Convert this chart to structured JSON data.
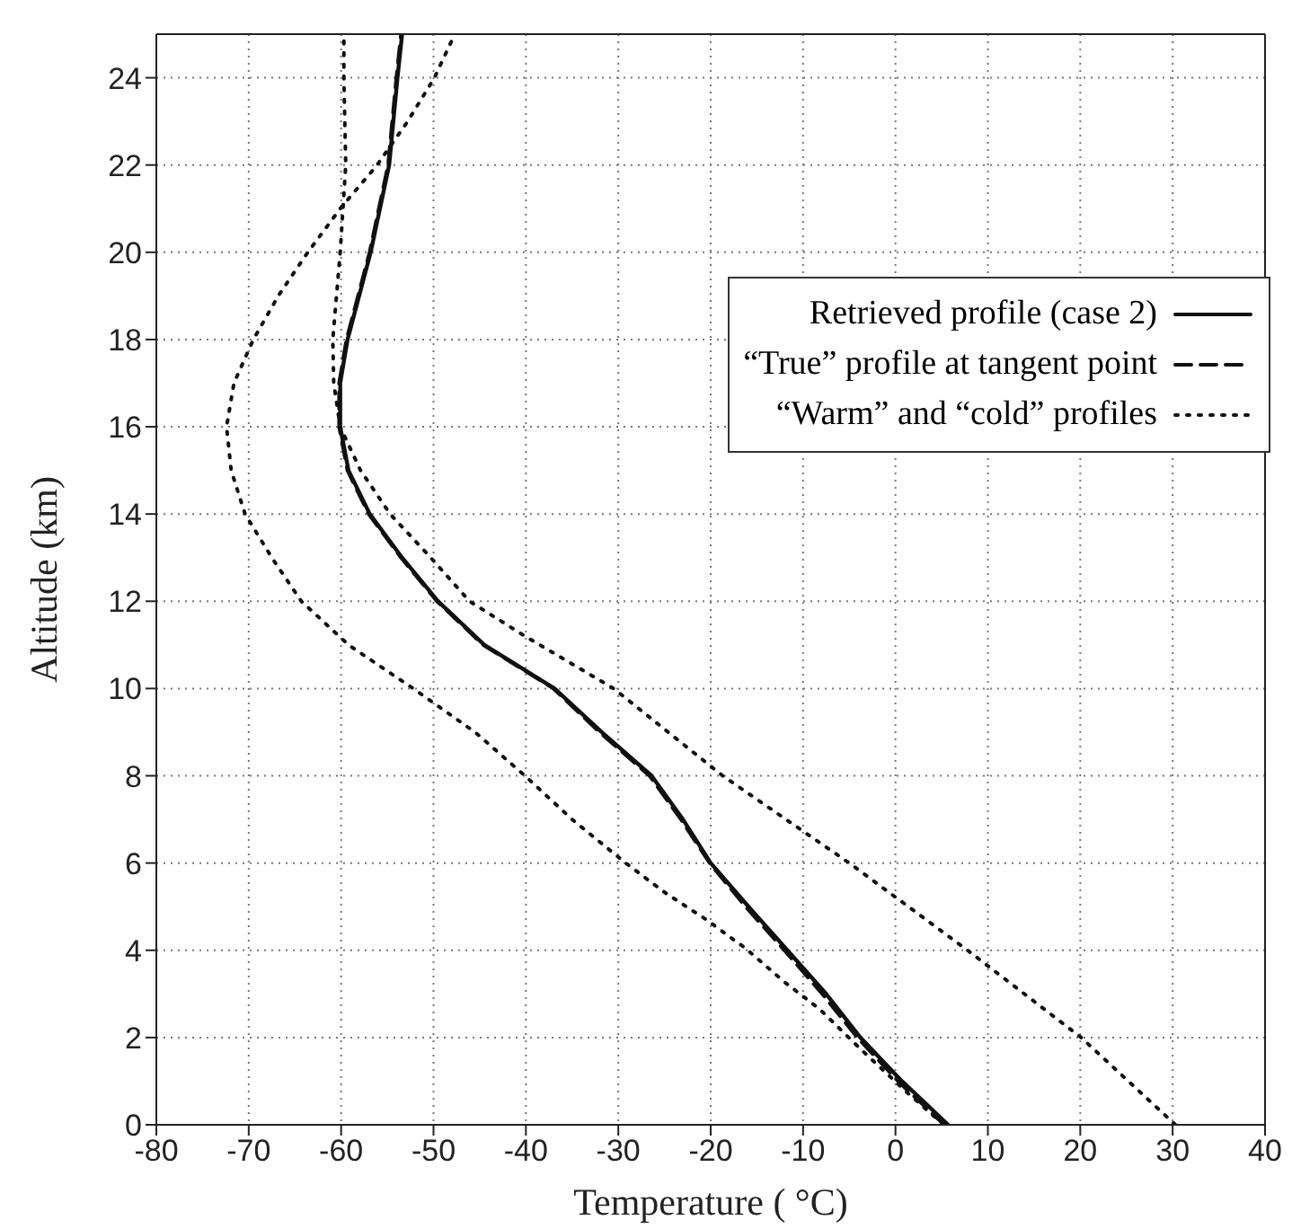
{
  "chart_data": {
    "type": "line",
    "xlabel": "Temperature ( °C)",
    "ylabel": "Altitude (km)",
    "xlim": [
      -80,
      40
    ],
    "ylim": [
      0,
      25
    ],
    "xticks": [
      -80,
      -70,
      -60,
      -50,
      -40,
      -30,
      -20,
      -10,
      0,
      10,
      20,
      30,
      40
    ],
    "yticks": [
      0,
      2,
      4,
      6,
      8,
      10,
      12,
      14,
      16,
      18,
      20,
      22,
      24
    ],
    "grid": true,
    "legend": "right",
    "tick_labels": [
      "x",
      "y"
    ],
    "series": [
      {
        "name": "Retrieved profile (case 2)",
        "color": "#111111",
        "line_style": "solid",
        "x": [
          5.7,
          0.7,
          -3.8,
          -7.5,
          -11.7,
          -15.9,
          -20,
          -23,
          -26.4,
          -31.8,
          -36.9,
          -44.5,
          -49.5,
          -53.4,
          -56.9,
          -59.2,
          -60.1,
          -60.1,
          -59.3,
          -56.8,
          -54.8,
          -53.9,
          -53.4
        ],
        "values": [
          0,
          1,
          2,
          3,
          4,
          5,
          6,
          7,
          8,
          9,
          10,
          11,
          12,
          13,
          14,
          15,
          16,
          17,
          18,
          20,
          22,
          24,
          25
        ]
      },
      {
        "name": "“True” profile at tangent point",
        "color": "#111111",
        "line_style": "dashed",
        "x": [
          5.3,
          0.3,
          -4.1,
          -7.9,
          -12,
          -16.2,
          -20.1,
          -23.2,
          -26.6,
          -32,
          -37,
          -44.6,
          -49.6,
          -53.5,
          -57,
          -59.3,
          -60.2,
          -60.2,
          -59.4,
          -56.9,
          -54.9,
          -54,
          -53.5
        ],
        "values": [
          0,
          1,
          2,
          3,
          4,
          5,
          6,
          7,
          8,
          9,
          10,
          11,
          12,
          13,
          14,
          15,
          16,
          17,
          18,
          20,
          22,
          24,
          25
        ]
      },
      {
        "name": "“Warm” and “cold” profiles",
        "color": "#111111",
        "line_style": "dotted",
        "x": [
          30.3,
          20.1,
          7.8,
          -5,
          -18.7,
          -30.5,
          -40.1,
          -46.1,
          -50.3,
          -54.7,
          -57.9,
          -60.1,
          -60.8,
          -60.9,
          -60.1,
          -59.5,
          -59.7,
          -59.7
        ],
        "values": [
          0,
          2,
          4,
          6,
          8,
          10,
          11.2,
          12,
          13,
          14,
          15,
          16,
          17,
          18,
          20,
          22,
          24,
          25
        ]
      },
      {
        "color": "#111111",
        "line_style": "dotted",
        "x": [
          5.2,
          0.7,
          -3.8,
          -8.2,
          -12,
          -16.2,
          -20.6,
          -24.8,
          -29.2,
          -35,
          -40.1,
          -45.5,
          -52.2,
          -59.2,
          -64.3,
          -67.5,
          -70.4,
          -71.9,
          -72.4,
          -71.6,
          -69.5,
          -66.8,
          -63.6,
          -60.1,
          -56.1,
          -52.8,
          -49.9,
          -47.7
        ],
        "values": [
          0,
          0.85,
          1.74,
          2.65,
          3.27,
          4.04,
          4.72,
          5.3,
          6,
          7,
          8,
          9,
          10,
          11,
          12,
          13,
          14,
          15,
          16,
          17,
          18,
          19,
          20,
          21,
          22,
          23,
          24,
          25
        ]
      }
    ]
  }
}
